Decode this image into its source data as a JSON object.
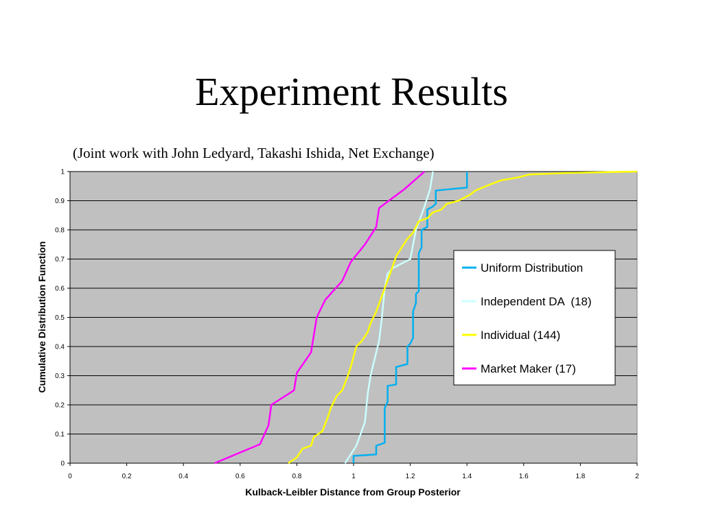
{
  "slide": {
    "title": "Experiment Results",
    "subtitle": "(Joint work with John Ledyard, Takashi Ishida, Net Exchange)"
  },
  "chart_data": {
    "type": "line",
    "xlabel": "Kulback-Leibler Distance from Group Posterior",
    "ylabel": "Cumulative Distribution Function",
    "xlim": [
      0,
      2
    ],
    "ylim": [
      0,
      1
    ],
    "x_ticks": [
      "0",
      "0.2",
      "0.4",
      "0.6",
      "0.8",
      "1",
      "1.2",
      "1.4",
      "1.6",
      "1.8",
      "2"
    ],
    "y_ticks": [
      "0",
      "0.1",
      "0.2",
      "0.3",
      "0.4",
      "0.5",
      "0.6",
      "0.7",
      "0.8",
      "0.9",
      "1"
    ],
    "grid": true,
    "plot_background": "#c0c0c0",
    "legend_position": "right",
    "series": [
      {
        "name": "Uniform Distribution",
        "color": "#00b0f0",
        "points": [
          [
            1.0,
            0
          ],
          [
            1.0,
            0.025
          ],
          [
            1.08,
            0.03
          ],
          [
            1.08,
            0.06
          ],
          [
            1.11,
            0.07
          ],
          [
            1.11,
            0.19
          ],
          [
            1.12,
            0.21
          ],
          [
            1.12,
            0.265
          ],
          [
            1.15,
            0.27
          ],
          [
            1.15,
            0.33
          ],
          [
            1.19,
            0.34
          ],
          [
            1.19,
            0.4
          ],
          [
            1.2,
            0.41
          ],
          [
            1.21,
            0.43
          ],
          [
            1.21,
            0.52
          ],
          [
            1.22,
            0.55
          ],
          [
            1.22,
            0.58
          ],
          [
            1.23,
            0.59
          ],
          [
            1.23,
            0.72
          ],
          [
            1.24,
            0.74
          ],
          [
            1.24,
            0.8
          ],
          [
            1.26,
            0.81
          ],
          [
            1.26,
            0.87
          ],
          [
            1.28,
            0.88
          ],
          [
            1.29,
            0.89
          ],
          [
            1.29,
            0.935
          ],
          [
            1.4,
            0.945
          ],
          [
            1.4,
            1.0
          ]
        ]
      },
      {
        "name": "Independent DA  (18)",
        "color": "#ccffff",
        "points": [
          [
            0.97,
            0
          ],
          [
            0.99,
            0.03
          ],
          [
            1.01,
            0.06
          ],
          [
            1.04,
            0.14
          ],
          [
            1.05,
            0.24
          ],
          [
            1.06,
            0.3
          ],
          [
            1.07,
            0.34
          ],
          [
            1.09,
            0.42
          ],
          [
            1.1,
            0.5
          ],
          [
            1.11,
            0.6
          ],
          [
            1.12,
            0.65
          ],
          [
            1.14,
            0.67
          ],
          [
            1.2,
            0.7
          ],
          [
            1.22,
            0.8
          ],
          [
            1.25,
            0.88
          ],
          [
            1.27,
            0.94
          ],
          [
            1.28,
            1.0
          ]
        ]
      },
      {
        "name": "Individual (144)",
        "color": "#ffff00",
        "points": [
          [
            0.77,
            0
          ],
          [
            0.8,
            0.02
          ],
          [
            0.82,
            0.05
          ],
          [
            0.85,
            0.06
          ],
          [
            0.86,
            0.09
          ],
          [
            0.89,
            0.11
          ],
          [
            0.91,
            0.16
          ],
          [
            0.92,
            0.19
          ],
          [
            0.94,
            0.23
          ],
          [
            0.96,
            0.25
          ],
          [
            0.98,
            0.3
          ],
          [
            0.99,
            0.33
          ],
          [
            1.01,
            0.4
          ],
          [
            1.03,
            0.42
          ],
          [
            1.05,
            0.45
          ],
          [
            1.06,
            0.48
          ],
          [
            1.08,
            0.52
          ],
          [
            1.11,
            0.6
          ],
          [
            1.14,
            0.68
          ],
          [
            1.15,
            0.71
          ],
          [
            1.17,
            0.74
          ],
          [
            1.19,
            0.77
          ],
          [
            1.21,
            0.79
          ],
          [
            1.23,
            0.83
          ],
          [
            1.26,
            0.84
          ],
          [
            1.28,
            0.86
          ],
          [
            1.31,
            0.87
          ],
          [
            1.33,
            0.89
          ],
          [
            1.37,
            0.9
          ],
          [
            1.41,
            0.92
          ],
          [
            1.43,
            0.935
          ],
          [
            1.48,
            0.955
          ],
          [
            1.52,
            0.97
          ],
          [
            1.58,
            0.98
          ],
          [
            1.62,
            0.99
          ],
          [
            1.75,
            0.995
          ],
          [
            2.0,
            1.0
          ]
        ]
      },
      {
        "name": "Market Maker (17)",
        "color": "#ff00ff",
        "points": [
          [
            0.51,
            0
          ],
          [
            0.67,
            0.065
          ],
          [
            0.7,
            0.13
          ],
          [
            0.71,
            0.2
          ],
          [
            0.79,
            0.25
          ],
          [
            0.8,
            0.31
          ],
          [
            0.85,
            0.38
          ],
          [
            0.87,
            0.5
          ],
          [
            0.9,
            0.56
          ],
          [
            0.96,
            0.625
          ],
          [
            0.99,
            0.69
          ],
          [
            1.04,
            0.75
          ],
          [
            1.08,
            0.81
          ],
          [
            1.09,
            0.875
          ],
          [
            1.18,
            0.94
          ],
          [
            1.25,
            1.0
          ]
        ]
      }
    ]
  }
}
